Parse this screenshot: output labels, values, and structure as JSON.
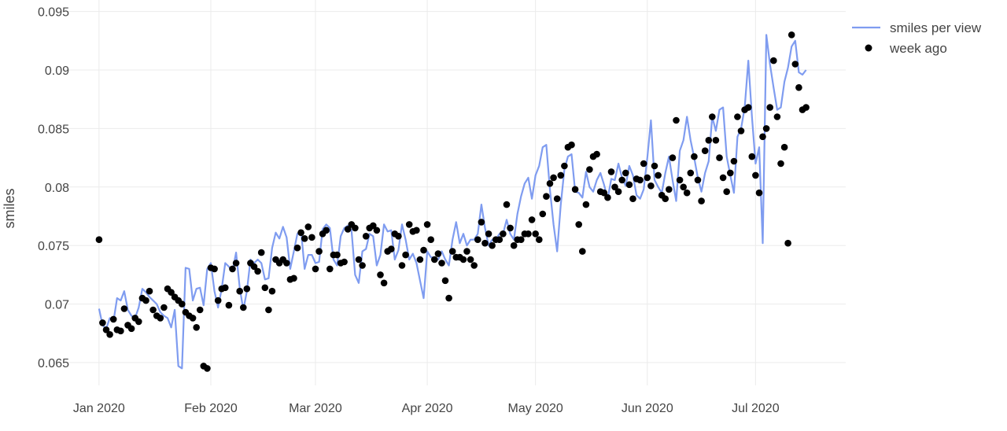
{
  "chart_data": {
    "type": "line",
    "title": "",
    "xlabel": "",
    "ylabel": "smiles",
    "start_date": "2020-01-01",
    "x_ticks": [
      {
        "label": "Jan 2020",
        "day": 0
      },
      {
        "label": "Feb 2020",
        "day": 31
      },
      {
        "label": "Mar 2020",
        "day": 60
      },
      {
        "label": "Apr 2020",
        "day": 91
      },
      {
        "label": "May 2020",
        "day": 121
      },
      {
        "label": "Jun 2020",
        "day": 152
      },
      {
        "label": "Jul 2020",
        "day": 182
      }
    ],
    "y_ticks": [
      "0.065",
      "0.07",
      "0.075",
      "0.08",
      "0.085",
      "0.09",
      "0.095"
    ],
    "ylim": [
      0.06305,
      0.09598
    ],
    "xlim_days": [
      -10,
      207
    ],
    "grid": true,
    "legend_position": "top-right",
    "series": [
      {
        "name": "smiles per view",
        "kind": "line",
        "color": "#7f9cf0",
        "values": [
          0.0696,
          0.0682,
          0.0679,
          0.0688,
          0.0685,
          0.0705,
          0.0703,
          0.0711,
          0.0695,
          0.069,
          0.0688,
          0.0697,
          0.0713,
          0.071,
          0.0706,
          0.0703,
          0.07,
          0.0693,
          0.069,
          0.0688,
          0.068,
          0.0695,
          0.0647,
          0.0645,
          0.0731,
          0.073,
          0.0703,
          0.0713,
          0.0714,
          0.0699,
          0.073,
          0.0735,
          0.0711,
          0.0697,
          0.0713,
          0.0735,
          0.0732,
          0.0728,
          0.0744,
          0.0714,
          0.0695,
          0.0711,
          0.0738,
          0.0735,
          0.0738,
          0.0735,
          0.0721,
          0.0722,
          0.0748,
          0.0761,
          0.0756,
          0.0766,
          0.0757,
          0.073,
          0.0745,
          0.076,
          0.0763,
          0.073,
          0.0742,
          0.0742,
          0.0735,
          0.0736,
          0.0764,
          0.0768,
          0.0765,
          0.0738,
          0.0733,
          0.0758,
          0.0765,
          0.0767,
          0.0763,
          0.0725,
          0.0718,
          0.0745,
          0.0747,
          0.076,
          0.0758,
          0.0733,
          0.0742,
          0.0768,
          0.0762,
          0.0763,
          0.0738,
          0.0746,
          0.0768,
          0.0755,
          0.0738,
          0.0743,
          0.0735,
          0.072,
          0.0705,
          0.0745,
          0.074,
          0.074,
          0.0738,
          0.0745,
          0.0738,
          0.0733,
          0.0755,
          0.077,
          0.0752,
          0.076,
          0.075,
          0.0755,
          0.0755,
          0.076,
          0.0785,
          0.0765,
          0.075,
          0.0755,
          0.0755,
          0.076,
          0.076,
          0.0772,
          0.076,
          0.0755,
          0.0777,
          0.0792,
          0.0803,
          0.0808,
          0.079,
          0.081,
          0.0818,
          0.0834,
          0.0836,
          0.0798,
          0.0768,
          0.0745,
          0.0785,
          0.0815,
          0.0826,
          0.0828,
          0.0796,
          0.0795,
          0.0791,
          0.0813,
          0.08,
          0.0796,
          0.0806,
          0.0812,
          0.0802,
          0.079,
          0.0807,
          0.0806,
          0.082,
          0.0808,
          0.0801,
          0.0818,
          0.081,
          0.0793,
          0.079,
          0.0798,
          0.0825,
          0.0857,
          0.0806,
          0.08,
          0.0795,
          0.0812,
          0.0826,
          0.0806,
          0.0788,
          0.0831,
          0.084,
          0.086,
          0.084,
          0.0825,
          0.0808,
          0.0796,
          0.0812,
          0.0822,
          0.086,
          0.0848,
          0.0866,
          0.0868,
          0.0826,
          0.081,
          0.0795,
          0.0843,
          0.085,
          0.0868,
          0.0908,
          0.086,
          0.082,
          0.0834,
          0.0752,
          0.093,
          0.0905,
          0.0885,
          0.0866,
          0.0868,
          0.089,
          0.0902,
          0.092,
          0.0925,
          0.0898,
          0.0896,
          0.09
        ]
      },
      {
        "name": "week ago",
        "kind": "markers",
        "color": "#000000",
        "first_values": [
          0.0755,
          0.0684,
          0.0678,
          0.0674,
          0.0687,
          0.0678,
          0.0677
        ],
        "lag_days": 7
      }
    ]
  }
}
